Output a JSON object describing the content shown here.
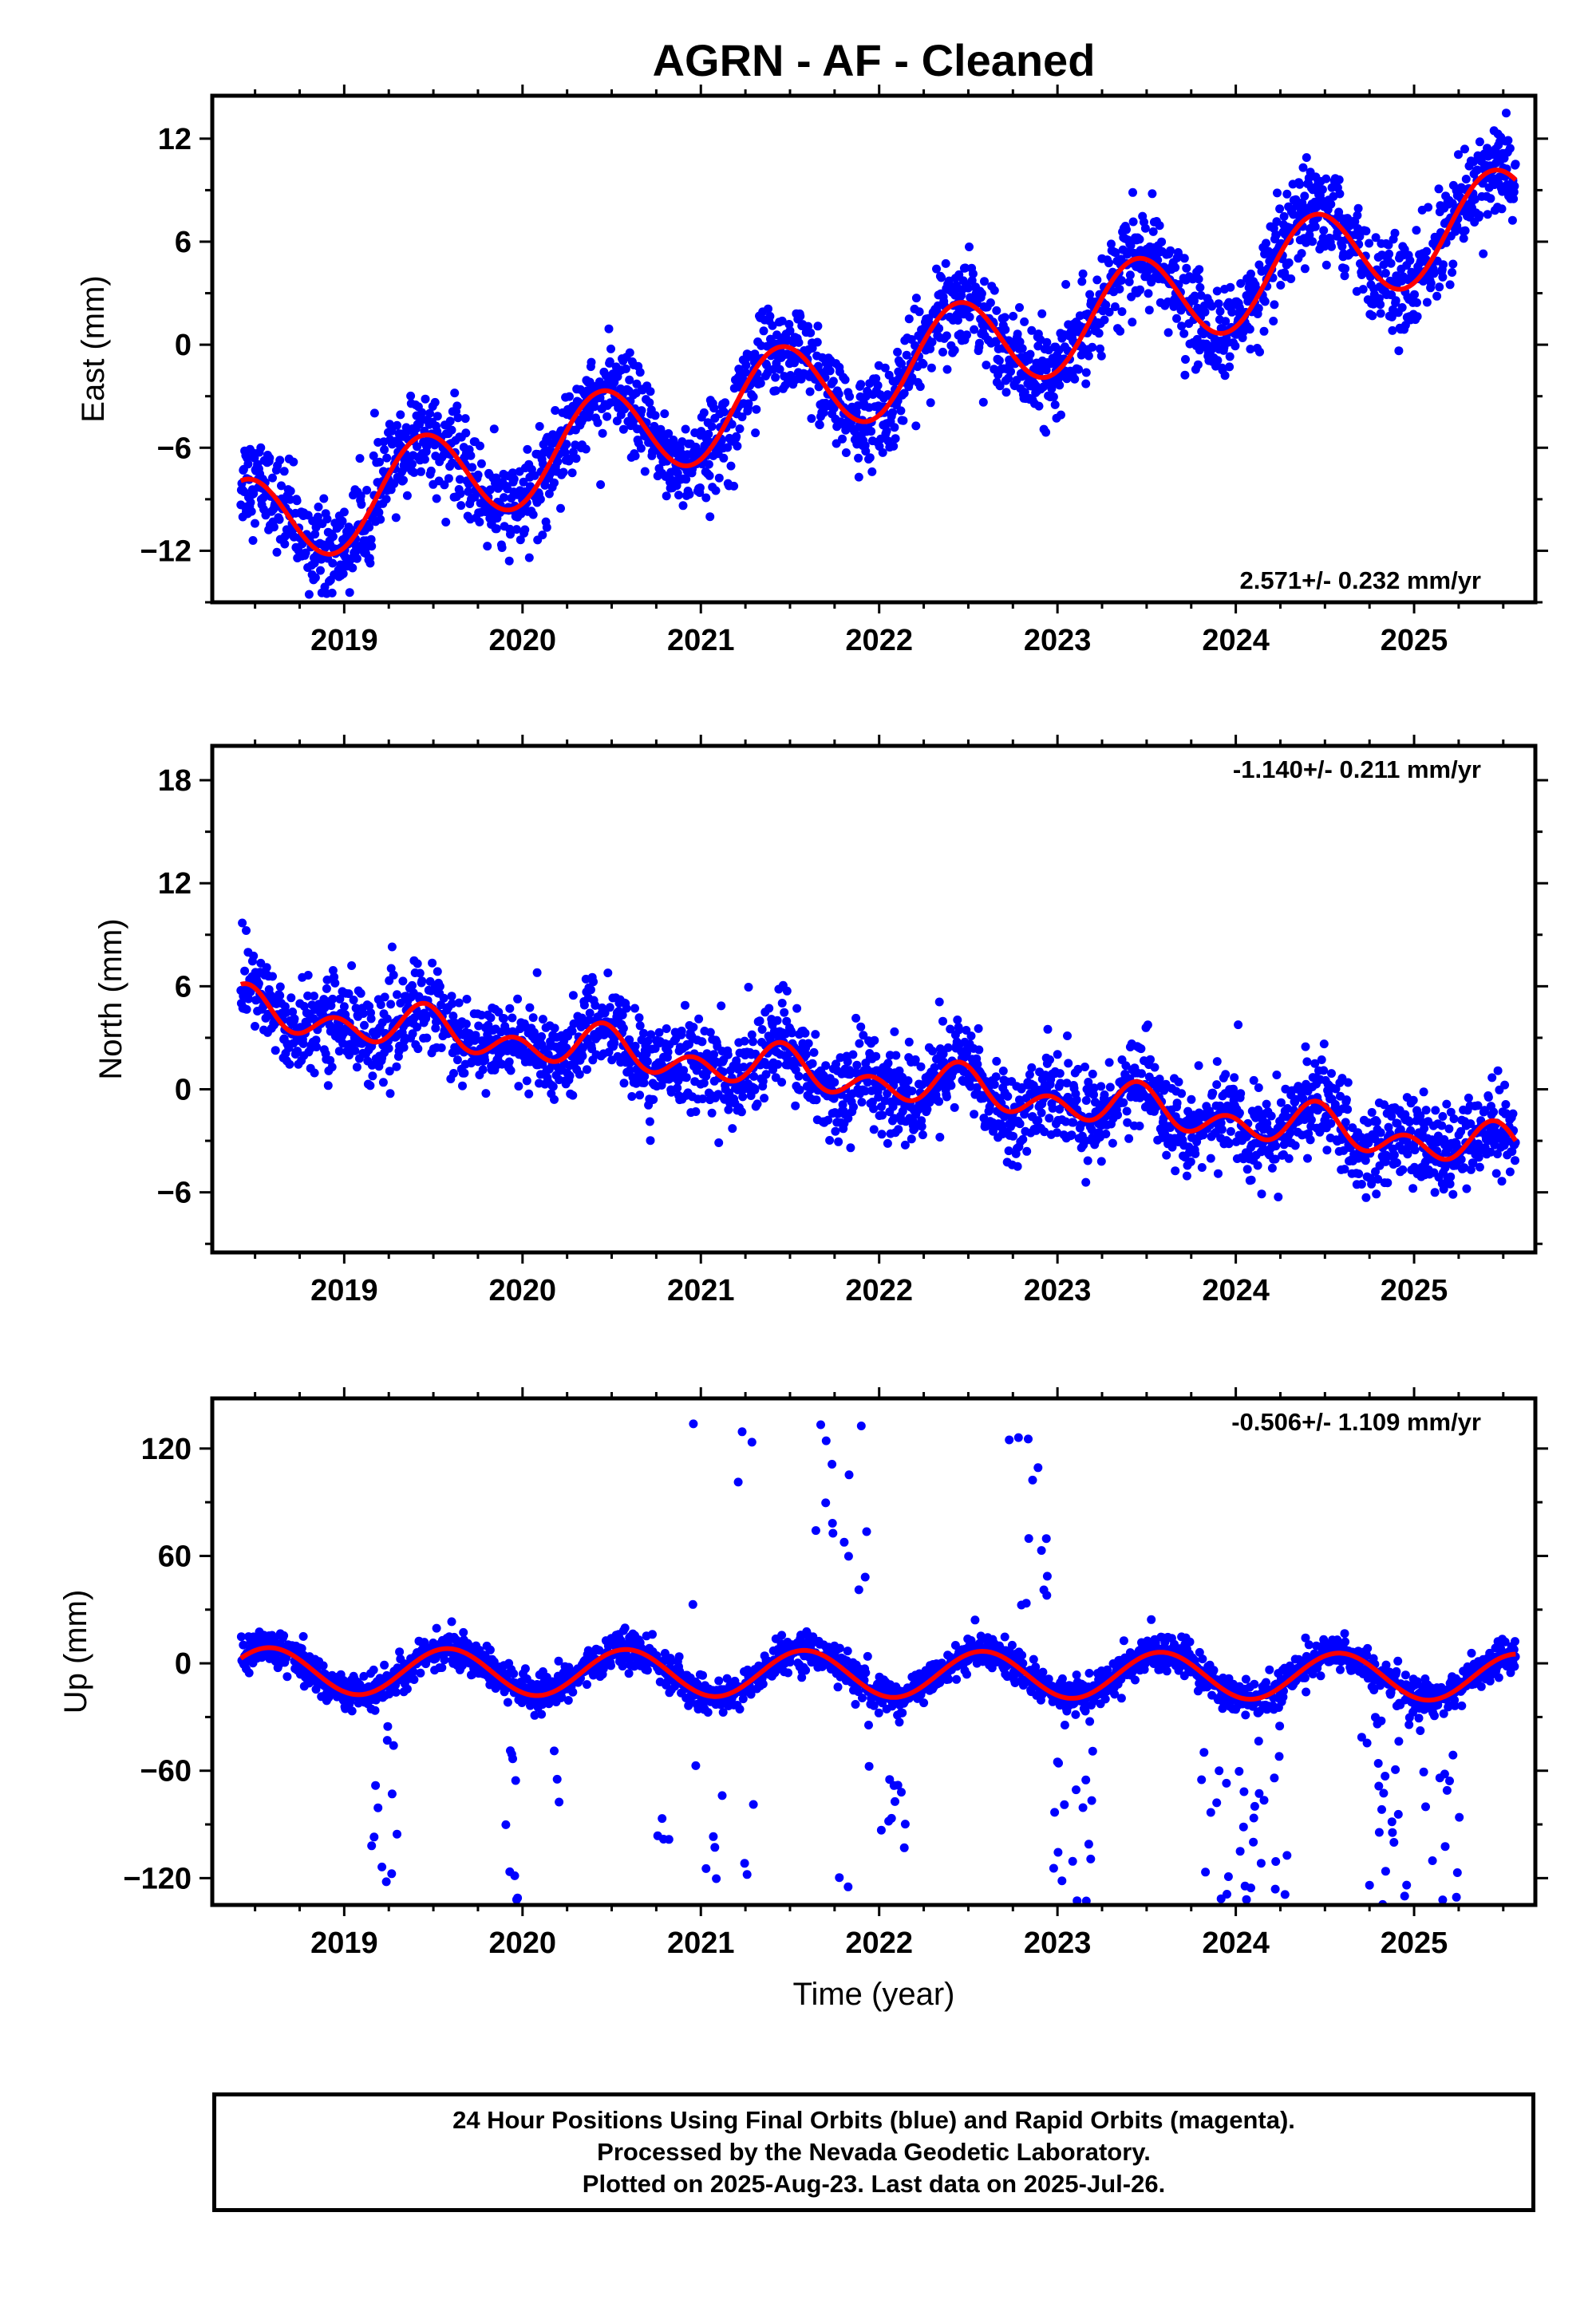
{
  "chart_data": [
    {
      "type": "scatter",
      "id": "east",
      "title": "AGRN  - AF - Cleaned",
      "ylabel": "East (mm)",
      "xlabel": "",
      "rate_text": "2.571+/- 0.232 mm/yr",
      "xlim": [
        2018.26,
        2025.68
      ],
      "ylim": [
        -15,
        14.5
      ],
      "y_ticks": [
        -12,
        -6,
        0,
        6,
        12
      ],
      "y_tick_labels": [
        "−12",
        "−6",
        "0",
        "6",
        "12"
      ],
      "x_ticks": [
        2019,
        2020,
        2021,
        2022,
        2023,
        2024,
        2025
      ],
      "x_tick_labels": [
        "2019",
        "2020",
        "2021",
        "2022",
        "2023",
        "2024",
        "2025"
      ],
      "data_range": [
        2018.42,
        2025.57
      ],
      "model": {
        "rate": 2.571,
        "offset": -1.5,
        "ref_year": 2022.0,
        "annual_amp": 2.8,
        "annual_peak": 2022.44
      },
      "scatter_noise": 1.35,
      "series": [
        {
          "kind": "points",
          "color": "#0000ff"
        },
        {
          "kind": "fit",
          "color": "#ff0000"
        }
      ]
    },
    {
      "type": "scatter",
      "id": "north",
      "title": "",
      "ylabel": "North (mm)",
      "xlabel": "",
      "rate_text": "-1.140+/- 0.211 mm/yr",
      "xlim": [
        2018.26,
        2025.68
      ],
      "ylim": [
        -9.5,
        20
      ],
      "y_ticks": [
        -6,
        0,
        6,
        12,
        18
      ],
      "y_tick_labels": [
        "−6",
        "0",
        "6",
        "12",
        "18"
      ],
      "x_ticks": [
        2019,
        2020,
        2021,
        2022,
        2023,
        2024,
        2025
      ],
      "x_tick_labels": [
        "2019",
        "2020",
        "2021",
        "2022",
        "2023",
        "2024",
        "2025"
      ],
      "data_range": [
        2018.42,
        2025.57
      ],
      "model": {
        "rate": -1.14,
        "offset": 0.5,
        "ref_year": 2022.0,
        "annual_amp": 0.7,
        "annual_peak": 2022.45,
        "semi_amp": 0.9,
        "semi_peak": 2022.45
      },
      "scatter_noise": 1.3,
      "series": [
        {
          "kind": "points",
          "color": "#0000ff"
        },
        {
          "kind": "fit",
          "color": "#ff0000"
        }
      ]
    },
    {
      "type": "scatter",
      "id": "up",
      "title": "",
      "ylabel": "Up (mm)",
      "xlabel": "Time (year)",
      "rate_text": "-0.506+/- 1.109 mm/yr",
      "xlim": [
        2018.26,
        2025.68
      ],
      "ylim": [
        -135,
        148
      ],
      "y_ticks": [
        -120,
        -60,
        0,
        60,
        120
      ],
      "y_tick_labels": [
        "−120",
        "−60",
        "0",
        "60",
        "120"
      ],
      "x_ticks": [
        2019,
        2020,
        2021,
        2022,
        2023,
        2024,
        2025
      ],
      "x_tick_labels": [
        "2019",
        "2020",
        "2021",
        "2022",
        "2023",
        "2024",
        "2025"
      ],
      "data_range": [
        2018.42,
        2025.57
      ],
      "model": {
        "rate": -0.506,
        "offset": -6,
        "ref_year": 2022.0,
        "annual_amp": 13,
        "annual_peak": 2021.58
      },
      "scatter_noise": 5,
      "outlier_windows": [
        [
          2019.15,
          2019.3,
          -1
        ],
        [
          2019.9,
          2020.0,
          -1
        ],
        [
          2020.15,
          2020.25,
          -1
        ],
        [
          2020.75,
          2020.85,
          -1
        ],
        [
          2020.95,
          2021.3,
          0
        ],
        [
          2021.6,
          2021.75,
          1
        ],
        [
          2021.75,
          2021.95,
          0
        ],
        [
          2022.0,
          2022.15,
          -1
        ],
        [
          2022.7,
          2022.95,
          1
        ],
        [
          2022.95,
          2023.2,
          -1
        ],
        [
          2023.8,
          2024.3,
          -1
        ],
        [
          2024.7,
          2025.3,
          -1
        ]
      ],
      "series": [
        {
          "kind": "points",
          "color": "#0000ff"
        },
        {
          "kind": "fit",
          "color": "#ff0000"
        }
      ]
    }
  ],
  "footer": {
    "line1": "24 Hour Positions Using Final Orbits (blue) and Rapid Orbits (magenta).",
    "line2": "Processed by the Nevada Geodetic Laboratory.",
    "line3": "Plotted on 2025-Aug-23. Last data on 2025-Jul-26."
  }
}
